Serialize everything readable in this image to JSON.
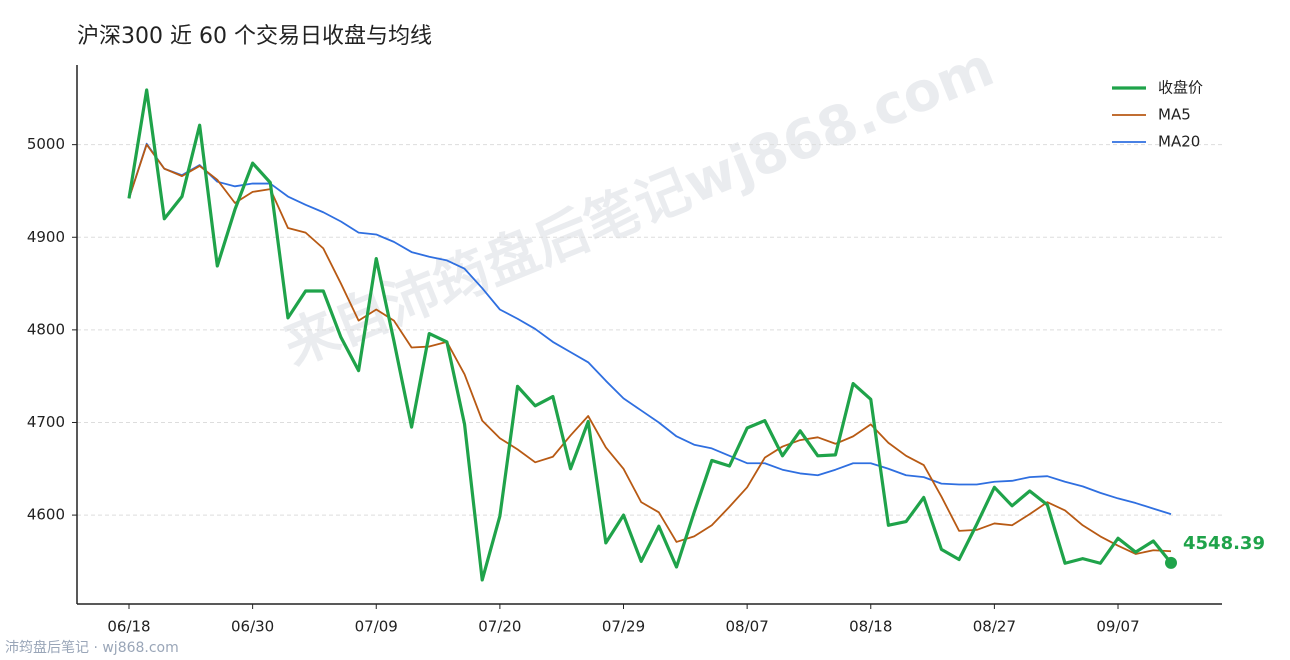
{
  "chart_data": {
    "type": "line",
    "title": "沪深300 近 60 个交易日收盘与均线",
    "watermark": "来自沛筠盘后笔记wj868.com",
    "footer": "沛筠盘后笔记 · wj868.com",
    "categories": [
      "06/18",
      null,
      null,
      null,
      null,
      null,
      null,
      "06/30",
      null,
      null,
      null,
      null,
      null,
      null,
      "07/09",
      null,
      null,
      null,
      null,
      null,
      null,
      "07/20",
      null,
      null,
      null,
      null,
      null,
      null,
      "07/29",
      null,
      null,
      null,
      null,
      null,
      null,
      "08/07",
      null,
      null,
      null,
      null,
      null,
      null,
      "08/18",
      null,
      null,
      null,
      null,
      null,
      null,
      "08/27",
      null,
      null,
      null,
      null,
      null,
      null,
      "09/07",
      null,
      null,
      null
    ],
    "series": [
      {
        "name": "收盘价",
        "color": "#1fa34a",
        "width": 3.2,
        "end_marker": true,
        "values": [
          4942,
          5059,
          4920,
          4944,
          5021,
          4869,
          4930,
          4980,
          4959,
          4813,
          4842,
          4842,
          4792,
          4756,
          4877,
          4788,
          4695,
          4796,
          4787,
          4698,
          4530,
          4599,
          4739,
          4718,
          4728,
          4650,
          4701,
          4570,
          4600,
          4550,
          4588,
          4544,
          4603,
          4659,
          4653,
          4694,
          4702,
          4664,
          4691,
          4664,
          4665,
          4742,
          4725,
          4589,
          4593,
          4619,
          4563,
          4552,
          4590,
          4630,
          4610,
          4626,
          4611,
          4548,
          4553,
          4548,
          4575,
          4560,
          4572,
          4548.39
        ]
      },
      {
        "name": "MA5",
        "color": "#b85a14",
        "width": 1.8,
        "values": [
          4942,
          5000,
          4974,
          4966,
          4977,
          4962,
          4937,
          4949,
          4952,
          4910,
          4905,
          4888,
          4850,
          4810,
          4822,
          4810,
          4781,
          4782,
          4787,
          4752,
          4702,
          4683,
          4671,
          4657,
          4663,
          4686,
          4707,
          4673,
          4650,
          4614,
          4603,
          4571,
          4577,
          4589,
          4609,
          4630,
          4662,
          4674,
          4681,
          4684,
          4677,
          4685,
          4698,
          4678,
          4664,
          4654,
          4620,
          4583,
          4584,
          4591,
          4589,
          4601,
          4614,
          4605,
          4589,
          4577,
          4567,
          4558,
          4562,
          4561
        ]
      },
      {
        "name": "MA20",
        "color": "#2f6fe0",
        "width": 1.8,
        "values": [
          4942,
          5001,
          4974,
          4967,
          4978,
          4960,
          4955,
          4958,
          4958,
          4944,
          4935,
          4927,
          4917,
          4905,
          4903,
          4895,
          4884,
          4879,
          4875,
          4866,
          4845,
          4822,
          4812,
          4801,
          4787,
          4776,
          4765,
          4745,
          4726,
          4713,
          4700,
          4685,
          4676,
          4672,
          4664,
          4656,
          4656,
          4649,
          4645,
          4643,
          4649,
          4656,
          4656,
          4650,
          4643,
          4641,
          4634,
          4633,
          4633,
          4636,
          4637,
          4641,
          4642,
          4636,
          4631,
          4624,
          4618,
          4613,
          4607,
          4601
        ]
      }
    ],
    "ylim": [
      4504,
      5086
    ],
    "yticks": [
      4600,
      4700,
      4800,
      4900,
      5000
    ],
    "grid": true,
    "legend": "upper right"
  }
}
